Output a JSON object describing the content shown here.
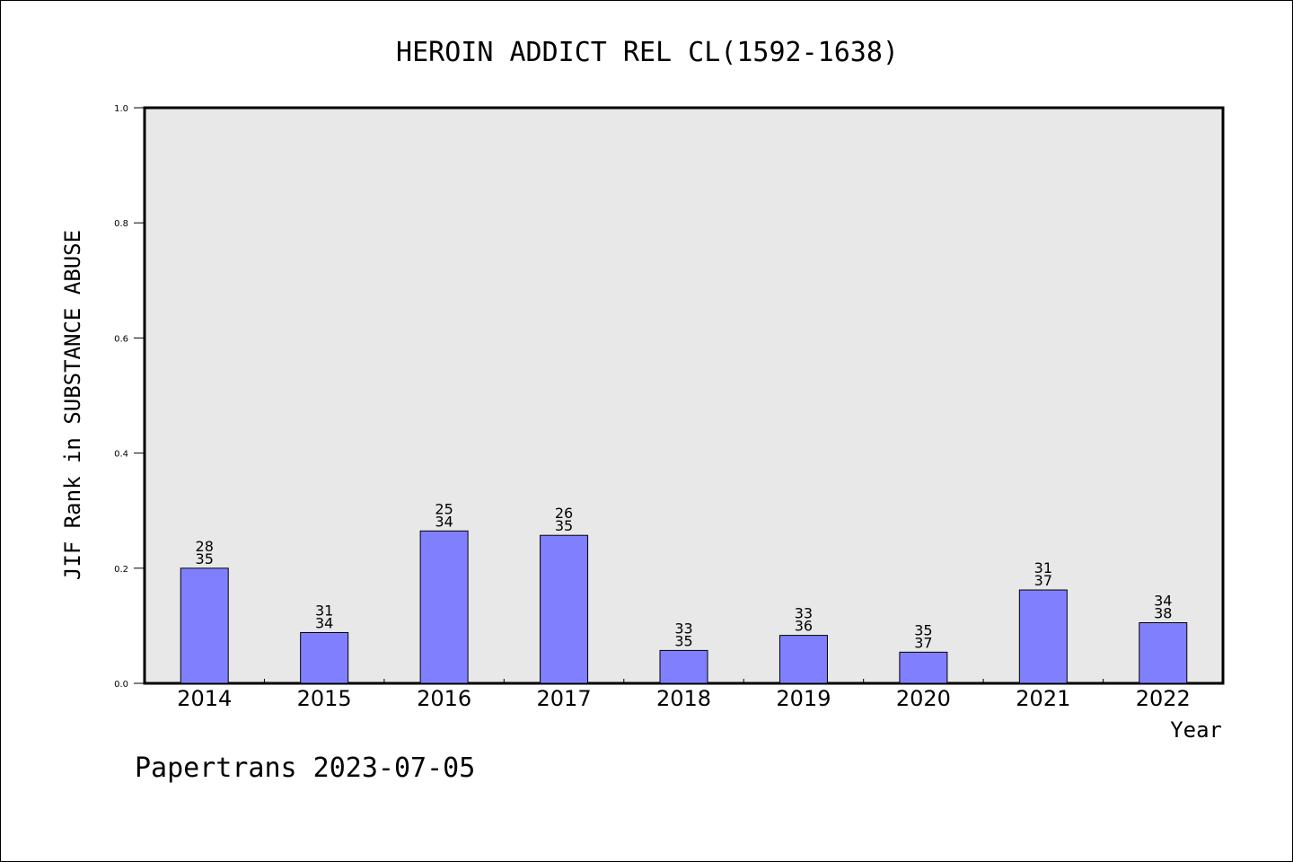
{
  "chart_data": {
    "type": "bar",
    "title": "HEROIN ADDICT REL CL(1592-1638)",
    "xlabel": "Year",
    "ylabel": "JIF Rank in SUBSTANCE ABUSE",
    "ylim": [
      0,
      1.0
    ],
    "yticks": [
      "0.0",
      "0.2",
      "0.4",
      "0.6",
      "0.8",
      "1.0"
    ],
    "grid": false,
    "categories": [
      "2014",
      "2015",
      "2016",
      "2017",
      "2018",
      "2019",
      "2020",
      "2021",
      "2022"
    ],
    "values": [
      0.2,
      0.0882,
      0.2647,
      0.2571,
      0.0571,
      0.0833,
      0.0541,
      0.1622,
      0.1053
    ],
    "labels_top": [
      "28",
      "31",
      "25",
      "26",
      "33",
      "33",
      "35",
      "31",
      "34"
    ],
    "labels_bottom": [
      "35",
      "34",
      "34",
      "35",
      "35",
      "36",
      "37",
      "37",
      "38"
    ],
    "colors": {
      "bar": "#8080ff",
      "plot_background": "#e8e8e8"
    }
  },
  "footer": "Papertrans 2023-07-05"
}
